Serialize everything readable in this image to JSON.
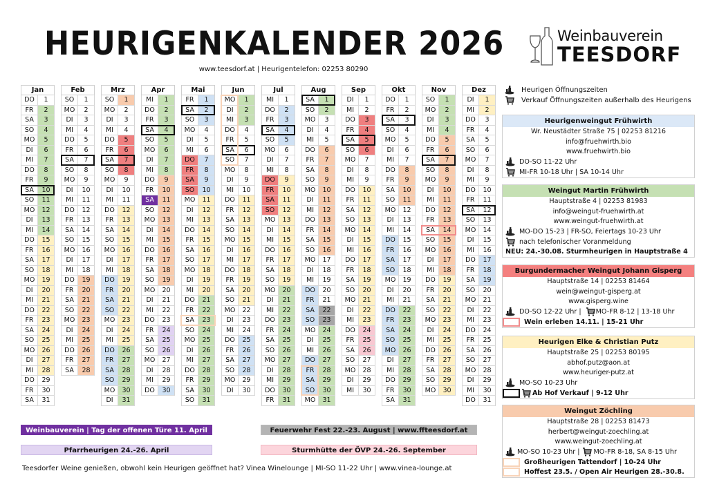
{
  "title": "HEURIGENKALENDER 2026",
  "subtitle": "www.teesdorf.at  |  Heurigentelefon: 02253 80290",
  "logo": {
    "line1": "Weinbauverein",
    "line2": "TEESDORF"
  },
  "weekday_names": [
    "MO",
    "DI",
    "MI",
    "DO",
    "FR",
    "SA",
    "SO"
  ],
  "colors": {
    "green": "#c5e0b3",
    "yellow": "#fff0c2",
    "salmon": "#f8cbad",
    "red": "#ef7f7f",
    "blue": "#cfe1f4",
    "lavender": "#e0d2f2",
    "purple": "#7030a0",
    "gray": "#a6a6a6",
    "pink": "#f8c8d2"
  },
  "months": [
    {
      "name": "Jan",
      "first_weekday": "DO",
      "days": 31,
      "boxed": 10,
      "highlights": [
        {
          "cell": "num",
          "color": "green",
          "from": 2,
          "to": 14
        },
        {
          "cell": "num",
          "color": "yellow",
          "from": 15,
          "to": 28
        }
      ]
    },
    {
      "name": "Feb",
      "first_weekday": "SO",
      "days": 28,
      "boxed": 7,
      "highlights": [
        {
          "cell": "num",
          "color": "salmon",
          "from": 19,
          "to": 28
        }
      ]
    },
    {
      "name": "Mrz",
      "first_weekday": "SO",
      "days": 31,
      "boxed": 7,
      "highlights": [
        {
          "cell": "num",
          "color": "salmon",
          "from": 1,
          "to": 1
        },
        {
          "cell": "num",
          "color": "red",
          "from": 5,
          "to": 8
        },
        {
          "cell": "num",
          "color": "yellow",
          "from": 12,
          "to": 25
        },
        {
          "cell": "wd",
          "color": "blue",
          "from": 19,
          "to": 22
        },
        {
          "cell": "wd",
          "color": "blue",
          "from": 26,
          "to": 29
        },
        {
          "cell": "num",
          "color": "green",
          "from": 26,
          "to": 31
        }
      ]
    },
    {
      "name": "Apr",
      "first_weekday": "MI",
      "days": 30,
      "boxed": 4,
      "highlights": [
        {
          "cell": "num",
          "color": "green",
          "from": 1,
          "to": 8
        },
        {
          "cell": "num",
          "color": "salmon",
          "from": 9,
          "to": 19
        },
        {
          "cell": "wd",
          "color": "purple",
          "from": 11,
          "to": 11
        },
        {
          "cell": "num",
          "color": "lavender",
          "from": 24,
          "to": 26
        },
        {
          "cell": "num",
          "color": "blue",
          "from": 30,
          "to": 30
        }
      ]
    },
    {
      "name": "Mai",
      "first_weekday": "FR",
      "days": 31,
      "boxed": 2,
      "highlights": [
        {
          "cell": "num",
          "color": "blue",
          "from": 1,
          "to": 3
        },
        {
          "cell": "wd",
          "color": "red",
          "from": 7,
          "to": 10
        },
        {
          "cell": "num",
          "color": "blue",
          "from": 7,
          "to": 10
        },
        {
          "cell": "num",
          "color": "yellow",
          "from": 11,
          "to": 20
        },
        {
          "cell": "num",
          "color": "green",
          "from": 21,
          "to": 31
        }
      ],
      "outlines": [
        {
          "cell": "row",
          "color": "salmon",
          "from": 23,
          "to": 23
        }
      ]
    },
    {
      "name": "Jun",
      "first_weekday": "MO",
      "days": 30,
      "boxed": 6,
      "highlights": [
        {
          "cell": "num",
          "color": "green",
          "from": 1,
          "to": 3
        },
        {
          "cell": "num",
          "color": "yellow",
          "from": 11,
          "to": 21
        },
        {
          "cell": "num",
          "color": "blue",
          "from": 25,
          "to": 28
        }
      ],
      "outlines": [
        {
          "cell": "wd",
          "color": "salmon",
          "from": 1,
          "to": 7
        }
      ]
    },
    {
      "name": "Jul",
      "first_weekday": "MI",
      "days": 31,
      "boxed": 4,
      "highlights": [
        {
          "cell": "num",
          "color": "blue",
          "from": 2,
          "to": 5
        },
        {
          "cell": "wd",
          "color": "red",
          "from": 9,
          "to": 12
        },
        {
          "cell": "num",
          "color": "yellow",
          "from": 9,
          "to": 19
        },
        {
          "cell": "num",
          "color": "green",
          "from": 20,
          "to": 31
        }
      ]
    },
    {
      "name": "Aug",
      "first_weekday": "SA",
      "days": 31,
      "boxed": 1,
      "highlights": [
        {
          "cell": "num",
          "color": "green",
          "from": 1,
          "to": 2
        },
        {
          "cell": "num",
          "color": "salmon",
          "from": 6,
          "to": 16
        },
        {
          "cell": "wd",
          "color": "blue",
          "from": 20,
          "to": 23
        },
        {
          "cell": "num",
          "color": "gray",
          "from": 22,
          "to": 23
        },
        {
          "cell": "num",
          "color": "green",
          "from": 24,
          "to": 31
        },
        {
          "cell": "wd",
          "color": "blue",
          "from": 27,
          "to": 30
        }
      ],
      "outlines": [
        {
          "cell": "wd",
          "color": "salmon",
          "from": 28,
          "to": 30
        }
      ]
    },
    {
      "name": "Sep",
      "first_weekday": "DI",
      "days": 30,
      "boxed": 5,
      "highlights": [
        {
          "cell": "num",
          "color": "red",
          "from": 3,
          "to": 6
        },
        {
          "cell": "num",
          "color": "yellow",
          "from": 10,
          "to": 23
        },
        {
          "cell": "num",
          "color": "pink",
          "from": 24,
          "to": 26
        }
      ]
    },
    {
      "name": "Okt",
      "first_weekday": "DO",
      "days": 31,
      "boxed": 3,
      "highlights": [
        {
          "cell": "num",
          "color": "salmon",
          "from": 8,
          "to": 11
        },
        {
          "cell": "wd",
          "color": "blue",
          "from": 15,
          "to": 18
        },
        {
          "cell": "wd",
          "color": "blue",
          "from": 22,
          "to": 26
        },
        {
          "cell": "num",
          "color": "green",
          "from": 22,
          "to": 31
        }
      ]
    },
    {
      "name": "Nov",
      "first_weekday": "SO",
      "days": 30,
      "boxed": 7,
      "highlights": [
        {
          "cell": "num",
          "color": "green",
          "from": 1,
          "to": 4
        },
        {
          "cell": "num",
          "color": "salmon",
          "from": 5,
          "to": 18
        },
        {
          "cell": "num",
          "color": "yellow",
          "from": 19,
          "to": 30
        }
      ],
      "outlines": [
        {
          "cell": "row",
          "color": "red",
          "from": 14,
          "to": 14
        }
      ]
    },
    {
      "name": "Dez",
      "first_weekday": "DI",
      "days": 31,
      "boxed": 12,
      "highlights": [
        {
          "cell": "num",
          "color": "yellow",
          "from": 1,
          "to": 2
        },
        {
          "cell": "num",
          "color": "blue",
          "from": 17,
          "to": 19
        }
      ]
    }
  ],
  "legend": {
    "heurigen": "Heurigen Öffnungszeiten",
    "verkauf": "Verkauf Öffnungszeiten außerhalb des Heurigens"
  },
  "cards": [
    {
      "name": "Heurigenweingut Frühwirth",
      "color": "#dbe8f7",
      "address": "Wr. Neustädter Straße 75 | 02253 81216",
      "email": "info@fruehwirth.bio",
      "web": "www.fruehwirth.bio",
      "heurigen": "DO-SO 11-22 Uhr",
      "verkauf": "MI-FR 10-18 Uhr | SA 10-14 Uhr"
    },
    {
      "name": "Weingut Martin Frühwirth",
      "color": "#c5e0b3",
      "address": "Hauptstraße 4 | 02253 81983",
      "email": "info@weingut-fruehwirth.at",
      "web": "www.weingut-fruehwirth.at",
      "heurigen": "MO-DO 15-23  | FR-SO, Feiertags 10-23 Uhr",
      "verkauf": "nach telefonischer Voranmeldung",
      "note": "NEU: 24.-30.08. Sturmheurigen in Hauptstraße 4"
    },
    {
      "name": "Burgundermacher Weingut Johann Gisperg",
      "color": "#f4807f",
      "address": "Hauptstraße 14 | 02253 81464",
      "email": "wein@weingut-gisperg.at",
      "web": "www.gisperg.wine",
      "heurigen": "DO-SO 12-22 Uhr |",
      "verkauf": "MO-FR 8-12 | 13-18 Uhr",
      "event": "Wein erleben 14.11. | 15-21 Uhr"
    },
    {
      "name": "Heurigen Elke & Christian Putz",
      "color": "#fff0c2",
      "address": "Hauptstraße 25 | 02253 80195",
      "email": "abhof.putz@aon.at",
      "web": "www.heuriger-putz.at",
      "heurigen": "MO-SO 10-23 Uhr",
      "event": "Ab Hof Verkauf | 9-12 Uhr"
    },
    {
      "name": "Weingut Zöchling",
      "color": "#f8cbad",
      "address": "Hauptstraße 28 | 02253 81473",
      "email": "herbert@weingut-zoechling.at",
      "web": "www.weingut-zoechling.at",
      "heurigen": "MO-SO 10-23 Uhr |",
      "verkauf": "MO-FR 8-18, SA 8-15 Uhr",
      "event1": "Großheurigen Tattendorf | 10-24 Uhr",
      "event2": "Hoffest 23.5. / Open Air Heurigen 28.-30.8."
    }
  ],
  "banners": {
    "open_day": "Weinbauverein | Tag der offenen Türe  11. April",
    "feuerwehr": "Feuerwehr Fest 22.-23. August | www.ffteesdorf.at",
    "pfarr": "Pfarrheurigen 24.-26. April",
    "sturm": "Sturmhütte der ÖVP 24.-26. September"
  },
  "footer": "Teesdorfer Weine genießen, obwohl kein Heurigen geöffnet hat? Vinea Winelounge | MI-SO 11-22 Uhr | www.vinea-lounge.at"
}
